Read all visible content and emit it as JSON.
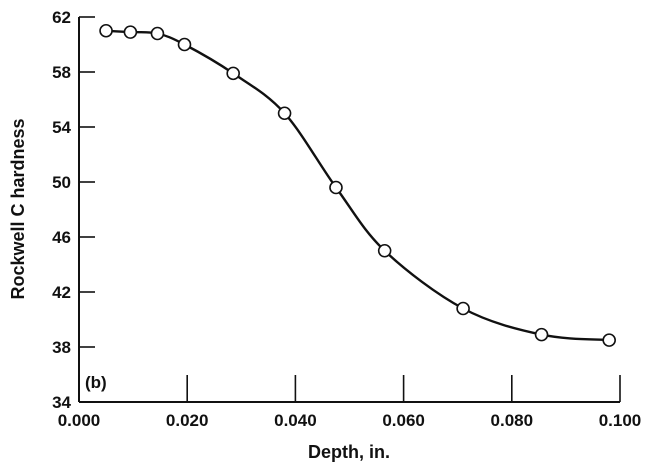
{
  "chart_data": {
    "type": "line",
    "panel_label": "(b)",
    "xlabel": "Depth, in.",
    "ylabel": "Rockwell C hardness",
    "xlim": [
      0.0,
      0.1
    ],
    "ylim": [
      34,
      62
    ],
    "x_ticks": [
      0.0,
      0.02,
      0.04,
      0.06,
      0.08,
      0.1
    ],
    "x_tick_labels": [
      "0.000",
      "0.020",
      "0.040",
      "0.060",
      "0.080",
      "0.100"
    ],
    "y_ticks": [
      34,
      38,
      42,
      46,
      50,
      54,
      58,
      62
    ],
    "y_tick_labels": [
      "34",
      "38",
      "42",
      "46",
      "50",
      "54",
      "58",
      "62"
    ],
    "grid": false,
    "series": [
      {
        "points": [
          {
            "x": 0.005,
            "y": 61.0
          },
          {
            "x": 0.0095,
            "y": 60.9
          },
          {
            "x": 0.0145,
            "y": 60.8
          },
          {
            "x": 0.0195,
            "y": 60.0
          },
          {
            "x": 0.0285,
            "y": 57.9
          },
          {
            "x": 0.038,
            "y": 55.0
          },
          {
            "x": 0.0475,
            "y": 49.6
          },
          {
            "x": 0.0565,
            "y": 45.0
          },
          {
            "x": 0.071,
            "y": 40.8
          },
          {
            "x": 0.0855,
            "y": 38.9
          },
          {
            "x": 0.098,
            "y": 38.5
          }
        ]
      }
    ]
  }
}
